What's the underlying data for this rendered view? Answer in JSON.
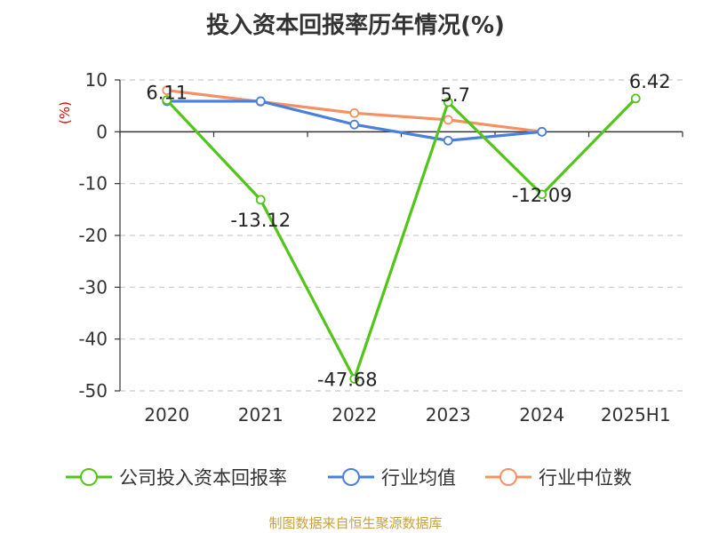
{
  "chart_data": {
    "type": "line",
    "title": "投入资本回报率历年情况(%)",
    "ylabel": "(%)",
    "xlabel": "",
    "categories": [
      "2020",
      "2021",
      "2022",
      "2023",
      "2024",
      "2025H1"
    ],
    "y_ticks": [
      "10",
      "0",
      "-10",
      "-20",
      "-30",
      "-40",
      "-50"
    ],
    "ylim": [
      -50,
      10
    ],
    "grid": true,
    "legend_position": "bottom",
    "series": [
      {
        "name": "公司投入资本回报率",
        "color": "#52c41a",
        "values": [
          6.11,
          -13.12,
          -47.68,
          5.7,
          -12.09,
          6.42
        ],
        "labels": [
          "6.11",
          "-13.12",
          "-47.68",
          "5.7",
          "-12.09",
          "6.42"
        ]
      },
      {
        "name": "行业均值",
        "color": "#4a7fdc",
        "values": [
          5.9,
          5.9,
          1.4,
          -1.7,
          0.0,
          null
        ]
      },
      {
        "name": "行业中位数",
        "color": "#f59062",
        "values": [
          8.0,
          5.8,
          3.6,
          2.3,
          0.0,
          null
        ]
      }
    ]
  },
  "footer": {
    "source": "制图数据来自恒生聚源数据库"
  }
}
